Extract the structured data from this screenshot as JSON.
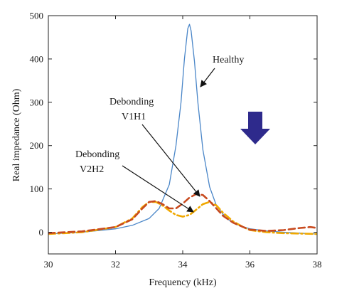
{
  "chart_data": {
    "type": "line",
    "xlabel": "Frequency (kHz)",
    "ylabel": "Real impedance (Ohm)",
    "xlim": [
      30,
      38
    ],
    "ylim": [
      -50,
      500
    ],
    "xticks": [
      30,
      32,
      34,
      36,
      38
    ],
    "yticks": [
      0,
      100,
      200,
      300,
      400,
      500
    ],
    "grid": false,
    "series": [
      {
        "name": "Healthy",
        "color": "#4a86c8",
        "style": "solid",
        "x": [
          30,
          31,
          32,
          32.5,
          33,
          33.3,
          33.6,
          33.8,
          33.95,
          34.05,
          34.15,
          34.2,
          34.25,
          34.35,
          34.45,
          34.6,
          34.8,
          35,
          35.3,
          35.6,
          36,
          36.5,
          37,
          37.5,
          38
        ],
        "y": [
          -4,
          0,
          8,
          16,
          32,
          55,
          110,
          200,
          300,
          400,
          470,
          480,
          465,
          395,
          300,
          190,
          105,
          62,
          32,
          18,
          8,
          3,
          0,
          -2,
          -4
        ]
      },
      {
        "name": "V1H1",
        "color": "#c84a1e",
        "style": "dashed",
        "x": [
          30,
          31,
          32,
          32.5,
          32.8,
          33,
          33.2,
          33.4,
          33.6,
          33.8,
          34,
          34.2,
          34.4,
          34.6,
          34.8,
          35,
          35.2,
          35.5,
          35.8,
          36,
          36.5,
          37,
          37.5,
          37.8,
          38
        ],
        "y": [
          -2,
          2,
          12,
          30,
          55,
          70,
          72,
          65,
          55,
          55,
          66,
          80,
          88,
          86,
          72,
          55,
          38,
          22,
          12,
          6,
          3,
          5,
          10,
          12,
          10
        ]
      },
      {
        "name": "V2H2",
        "color": "#f0a800",
        "style": "dashdot",
        "x": [
          30,
          31,
          32,
          32.5,
          32.8,
          33,
          33.2,
          33.4,
          33.6,
          33.8,
          34,
          34.2,
          34.4,
          34.6,
          34.8,
          35,
          35.2,
          35.5,
          35.8,
          36,
          36.5,
          37,
          37.5,
          38
        ],
        "y": [
          -4,
          0,
          12,
          32,
          58,
          70,
          70,
          62,
          50,
          40,
          36,
          40,
          52,
          65,
          70,
          62,
          45,
          25,
          12,
          5,
          0,
          -2,
          -3,
          -4
        ]
      }
    ],
    "annotations": {
      "healthy": "Healthy",
      "v1h1_line1": "Debonding",
      "v1h1_line2": "V1H1",
      "v2h2_line1": "Debonding",
      "v2h2_line2": "V2H2"
    },
    "decrease_arrow_color": "#2e2a8c"
  }
}
